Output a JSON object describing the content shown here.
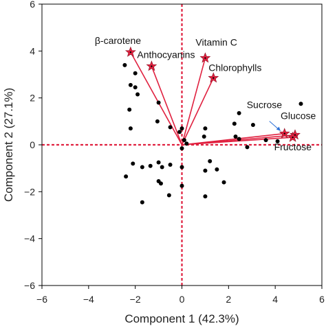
{
  "chart_data": {
    "type": "biplot",
    "xlabel": "Component 1 (42.3%)",
    "ylabel": "Component 2 (27.1%)",
    "xlim": [
      -6,
      6
    ],
    "ylim": [
      -6,
      6
    ],
    "xticks": [
      -6,
      -4,
      -2,
      0,
      2,
      4,
      6
    ],
    "yticks": [
      -6,
      -4,
      -2,
      0,
      2,
      4,
      6
    ],
    "tick_labels_x": [
      "−6",
      "−4",
      "−2",
      "0",
      "2",
      "4",
      "6"
    ],
    "tick_labels_y": [
      "−6",
      "−4",
      "−2",
      "0",
      "2",
      "4",
      "6"
    ],
    "grid": false,
    "reference_lines": {
      "x": 0,
      "y": 0,
      "style": "dashed",
      "color": "#e0203f"
    },
    "colors": {
      "vectors": "#e0203f",
      "points": "#000000",
      "axes": "#000000"
    },
    "loadings": [
      {
        "name": "β-carotene",
        "x": -2.2,
        "y": 3.95
      },
      {
        "name": "Anthocyanins",
        "x": -1.3,
        "y": 3.35
      },
      {
        "name": "Vitamin C",
        "x": 1.0,
        "y": 3.7
      },
      {
        "name": "Chlorophylls",
        "x": 1.35,
        "y": 2.85
      },
      {
        "name": "Sucrose",
        "x": 4.4,
        "y": 0.48
      },
      {
        "name": "Glucose",
        "x": 4.85,
        "y": 0.42
      },
      {
        "name": "Fructose",
        "x": 4.75,
        "y": 0.32
      }
    ],
    "scores": [
      [
        -2.45,
        3.4
      ],
      [
        -2.0,
        3.05
      ],
      [
        -2.2,
        2.55
      ],
      [
        -2.0,
        2.45
      ],
      [
        -1.9,
        2.15
      ],
      [
        -1.0,
        1.8
      ],
      [
        -2.25,
        1.5
      ],
      [
        -1.05,
        1.0
      ],
      [
        -2.2,
        0.7
      ],
      [
        -0.5,
        0.75
      ],
      [
        0.0,
        0.7
      ],
      [
        1.0,
        0.7
      ],
      [
        -0.1,
        0.55
      ],
      [
        0.1,
        0.2
      ],
      [
        0.2,
        0.05
      ],
      [
        0.95,
        0.35
      ],
      [
        0.0,
        -0.15
      ],
      [
        2.45,
        1.35
      ],
      [
        2.25,
        0.9
      ],
      [
        3.05,
        0.85
      ],
      [
        2.3,
        0.35
      ],
      [
        2.45,
        0.25
      ],
      [
        3.6,
        0.2
      ],
      [
        5.1,
        1.75
      ],
      [
        4.1,
        0.15
      ],
      [
        2.8,
        -0.1
      ],
      [
        0.0,
        -0.95
      ],
      [
        -1.0,
        -0.75
      ],
      [
        -0.5,
        -0.85
      ],
      [
        -0.85,
        -0.95
      ],
      [
        -2.1,
        -0.8
      ],
      [
        -1.7,
        -0.95
      ],
      [
        -1.35,
        -0.9
      ],
      [
        1.2,
        -0.7
      ],
      [
        1.0,
        -1.1
      ],
      [
        1.5,
        -1.05
      ],
      [
        -2.4,
        -1.35
      ],
      [
        -1.0,
        -1.55
      ],
      [
        -0.9,
        -1.65
      ],
      [
        0.0,
        -1.75
      ],
      [
        1.8,
        -1.6
      ],
      [
        1.0,
        -2.2
      ],
      [
        -1.7,
        -2.45
      ],
      [
        -0.55,
        -2.15
      ]
    ]
  }
}
